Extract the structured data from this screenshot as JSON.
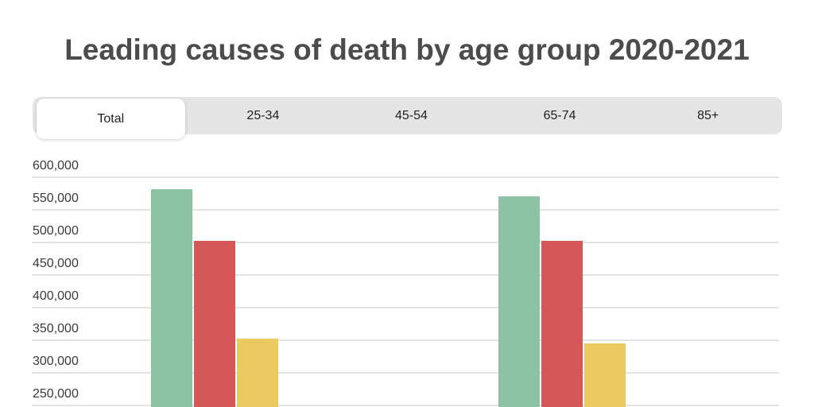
{
  "page": {
    "title": "Leading causes of death by age group 2020-2021"
  },
  "tabs": {
    "items": [
      {
        "label": "Total",
        "active": true
      },
      {
        "label": "25-34",
        "active": false
      },
      {
        "label": "45-54",
        "active": false
      },
      {
        "label": "65-74",
        "active": false
      },
      {
        "label": "85+",
        "active": false
      }
    ]
  },
  "colors": {
    "tab_bar_bg": "#e5e5e5",
    "active_tab_bg": "#ffffff",
    "title_text": "#4c4c4c",
    "axis_text": "#3a3a3a",
    "gridline": "#e4e4e4"
  },
  "chart_data": {
    "type": "bar",
    "title": "Leading causes of death by age group 2020-2021",
    "selected_tab": "Total",
    "categories": [
      "",
      ""
    ],
    "series": [
      {
        "name": "green",
        "color": "#8cc3a5",
        "values": [
          580000,
          570000
        ]
      },
      {
        "name": "red",
        "color": "#d65757",
        "values": [
          501000,
          501000
        ]
      },
      {
        "name": "yellow",
        "color": "#edca60",
        "values": [
          351000,
          344000
        ]
      }
    ],
    "y_axis": {
      "ticks": [
        600000,
        550000,
        500000,
        450000,
        400000,
        350000,
        300000,
        250000
      ],
      "tick_labels": [
        "600,000",
        "550,000",
        "500,000",
        "450,000",
        "400,000",
        "350,000",
        "300,000",
        "250,000"
      ]
    },
    "grid": true,
    "legend_position": "none",
    "visible_value_range": [
      246000,
      600000
    ],
    "note_bars_clipped_at_bottom": true
  }
}
